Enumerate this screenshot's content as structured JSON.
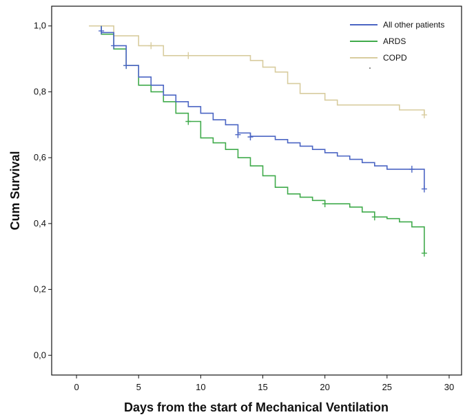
{
  "chart_data": {
    "type": "line",
    "step": true,
    "xlabel": "Days from the start of Mechanical Ventilation",
    "ylabel": "Cum Survival",
    "xlim": [
      -2,
      31
    ],
    "ylim": [
      -0.06,
      1.06
    ],
    "xticks": [
      0,
      5,
      10,
      15,
      20,
      25,
      30
    ],
    "xtick_labels": [
      "0",
      "5",
      "10",
      "15",
      "20",
      "25",
      "30"
    ],
    "yticks": [
      0.0,
      0.2,
      0.4,
      0.6,
      0.8,
      1.0
    ],
    "ytick_labels": [
      "0,0",
      "0,2",
      "0,4",
      "0,6",
      "0,8",
      "1,0"
    ],
    "grid": false,
    "legend_position": "top-right",
    "series": [
      {
        "name": "All other patients",
        "color": "#4a64c3",
        "points": [
          [
            2,
            1.0
          ],
          [
            2,
            0.98
          ],
          [
            3,
            0.98
          ],
          [
            3,
            0.94
          ],
          [
            4,
            0.94
          ],
          [
            4,
            0.88
          ],
          [
            5,
            0.88
          ],
          [
            5,
            0.845
          ],
          [
            6,
            0.845
          ],
          [
            6,
            0.82
          ],
          [
            7,
            0.82
          ],
          [
            7,
            0.79
          ],
          [
            8,
            0.79
          ],
          [
            8,
            0.77
          ],
          [
            9,
            0.77
          ],
          [
            9,
            0.755
          ],
          [
            10,
            0.755
          ],
          [
            10,
            0.735
          ],
          [
            11,
            0.735
          ],
          [
            11,
            0.715
          ],
          [
            12,
            0.715
          ],
          [
            12,
            0.7
          ],
          [
            13,
            0.7
          ],
          [
            13,
            0.675
          ],
          [
            14,
            0.675
          ],
          [
            14,
            0.665
          ],
          [
            16,
            0.665
          ],
          [
            16,
            0.655
          ],
          [
            17,
            0.655
          ],
          [
            17,
            0.645
          ],
          [
            18,
            0.645
          ],
          [
            18,
            0.635
          ],
          [
            19,
            0.635
          ],
          [
            19,
            0.625
          ],
          [
            20,
            0.625
          ],
          [
            20,
            0.615
          ],
          [
            21,
            0.615
          ],
          [
            21,
            0.605
          ],
          [
            22,
            0.605
          ],
          [
            22,
            0.595
          ],
          [
            23,
            0.595
          ],
          [
            23,
            0.585
          ],
          [
            24,
            0.585
          ],
          [
            24,
            0.575
          ],
          [
            25,
            0.575
          ],
          [
            25,
            0.565
          ],
          [
            28,
            0.565
          ],
          [
            28,
            0.505
          ]
        ],
        "censored": [
          [
            2,
            0.985
          ],
          [
            3,
            0.94
          ],
          [
            4,
            0.88
          ],
          [
            13,
            0.67
          ],
          [
            14,
            0.663
          ],
          [
            27,
            0.565
          ],
          [
            28,
            0.505
          ]
        ]
      },
      {
        "name": "ARDS",
        "color": "#3faa4a",
        "points": [
          [
            2,
            1.0
          ],
          [
            2,
            0.975
          ],
          [
            3,
            0.975
          ],
          [
            3,
            0.93
          ],
          [
            4,
            0.93
          ],
          [
            4,
            0.88
          ],
          [
            5,
            0.88
          ],
          [
            5,
            0.82
          ],
          [
            6,
            0.82
          ],
          [
            6,
            0.8
          ],
          [
            7,
            0.8
          ],
          [
            7,
            0.77
          ],
          [
            8,
            0.77
          ],
          [
            8,
            0.735
          ],
          [
            9,
            0.735
          ],
          [
            9,
            0.71
          ],
          [
            10,
            0.71
          ],
          [
            10,
            0.66
          ],
          [
            11,
            0.66
          ],
          [
            11,
            0.645
          ],
          [
            12,
            0.645
          ],
          [
            12,
            0.625
          ],
          [
            13,
            0.625
          ],
          [
            13,
            0.6
          ],
          [
            14,
            0.6
          ],
          [
            14,
            0.575
          ],
          [
            15,
            0.575
          ],
          [
            15,
            0.545
          ],
          [
            16,
            0.545
          ],
          [
            16,
            0.51
          ],
          [
            17,
            0.51
          ],
          [
            17,
            0.49
          ],
          [
            18,
            0.49
          ],
          [
            18,
            0.48
          ],
          [
            19,
            0.48
          ],
          [
            19,
            0.47
          ],
          [
            20,
            0.47
          ],
          [
            20,
            0.46
          ],
          [
            22,
            0.46
          ],
          [
            22,
            0.45
          ],
          [
            23,
            0.45
          ],
          [
            23,
            0.435
          ],
          [
            24,
            0.435
          ],
          [
            24,
            0.42
          ],
          [
            25,
            0.42
          ],
          [
            25,
            0.415
          ],
          [
            26,
            0.415
          ],
          [
            26,
            0.405
          ],
          [
            27,
            0.405
          ],
          [
            27,
            0.39
          ],
          [
            28,
            0.39
          ],
          [
            28,
            0.31
          ]
        ],
        "censored": [
          [
            4,
            0.88
          ],
          [
            9,
            0.71
          ],
          [
            20,
            0.46
          ],
          [
            24,
            0.42
          ],
          [
            28,
            0.31
          ]
        ]
      },
      {
        "name": "COPD",
        "color": "#d8cc9e",
        "points": [
          [
            1,
            1.0
          ],
          [
            3,
            1.0
          ],
          [
            3,
            0.97
          ],
          [
            5,
            0.97
          ],
          [
            5,
            0.94
          ],
          [
            7,
            0.94
          ],
          [
            7,
            0.91
          ],
          [
            14,
            0.91
          ],
          [
            14,
            0.895
          ],
          [
            15,
            0.895
          ],
          [
            15,
            0.875
          ],
          [
            16,
            0.875
          ],
          [
            16,
            0.86
          ],
          [
            17,
            0.86
          ],
          [
            17,
            0.825
          ],
          [
            18,
            0.825
          ],
          [
            18,
            0.795
          ],
          [
            20,
            0.795
          ],
          [
            20,
            0.775
          ],
          [
            21,
            0.775
          ],
          [
            21,
            0.76
          ],
          [
            26,
            0.76
          ],
          [
            26,
            0.745
          ],
          [
            28,
            0.745
          ],
          [
            28,
            0.73
          ]
        ],
        "censored": [
          [
            6,
            0.94
          ],
          [
            9,
            0.91
          ],
          [
            28,
            0.73
          ]
        ]
      }
    ]
  }
}
